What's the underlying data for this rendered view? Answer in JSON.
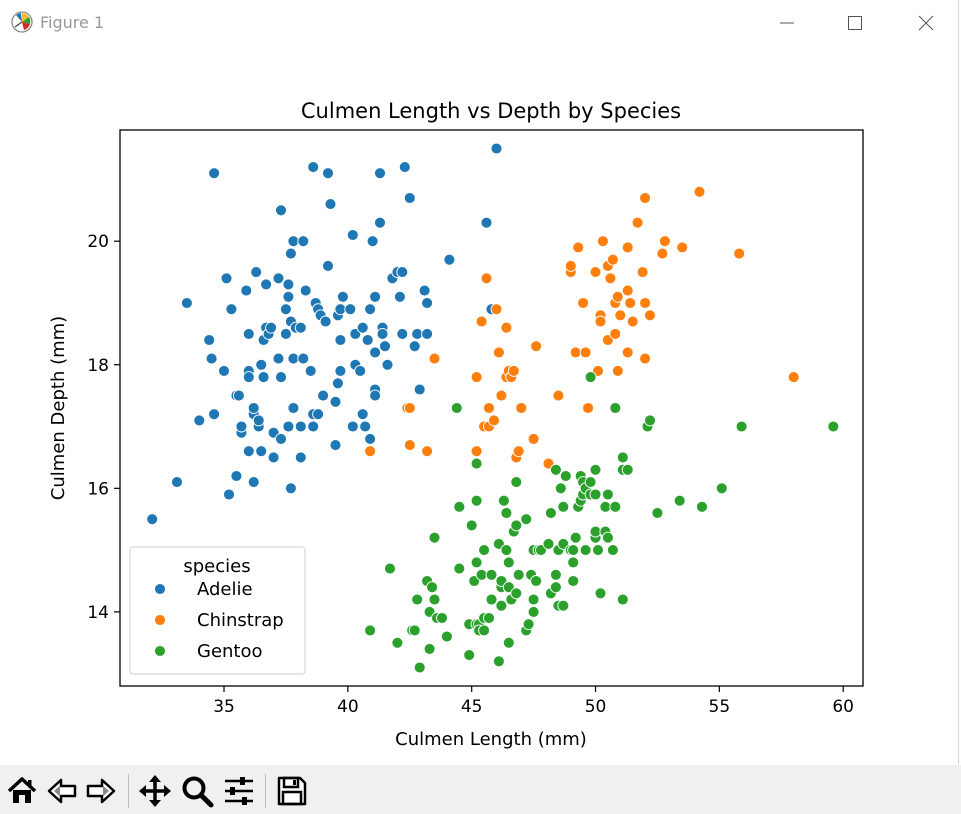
{
  "window": {
    "title": "Figure 1",
    "icons": [
      "matplotlib-icon",
      "minimize-icon",
      "maximize-icon",
      "close-icon"
    ]
  },
  "toolbar": {
    "buttons": [
      {
        "name": "home-button",
        "icon": "home-icon"
      },
      {
        "name": "back-button",
        "icon": "arrow-left-icon"
      },
      {
        "name": "forward-button",
        "icon": "arrow-right-icon"
      },
      {
        "name": "pan-button",
        "icon": "move-icon"
      },
      {
        "name": "zoom-button",
        "icon": "magnifier-icon"
      },
      {
        "name": "configure-subplots-button",
        "icon": "sliders-icon"
      },
      {
        "name": "save-button",
        "icon": "floppy-disk-icon"
      }
    ]
  },
  "chart_data": {
    "type": "scatter",
    "title": "Culmen Length vs Depth by Species",
    "xlabel": "Culmen Length (mm)",
    "ylabel": "Culmen Depth (mm)",
    "xlim": [
      30.8,
      60.8
    ],
    "ylim": [
      12.8,
      21.8
    ],
    "xticks": [
      35,
      40,
      45,
      50,
      55,
      60
    ],
    "yticks": [
      14,
      16,
      18,
      20
    ],
    "grid": false,
    "legend": {
      "title": "species",
      "position": "bottom-left"
    },
    "series": [
      {
        "name": "Adelie",
        "color": "#1f77b4",
        "points": [
          [
            32.1,
            15.5
          ],
          [
            33.1,
            16.1
          ],
          [
            33.5,
            19.0
          ],
          [
            34.0,
            17.1
          ],
          [
            34.4,
            18.4
          ],
          [
            34.5,
            18.1
          ],
          [
            34.6,
            21.1
          ],
          [
            34.6,
            17.2
          ],
          [
            35.0,
            17.9
          ],
          [
            35.1,
            19.4
          ],
          [
            35.2,
            15.9
          ],
          [
            35.3,
            18.9
          ],
          [
            35.5,
            16.2
          ],
          [
            35.5,
            17.5
          ],
          [
            35.6,
            17.5
          ],
          [
            35.7,
            16.9
          ],
          [
            35.7,
            17.0
          ],
          [
            35.9,
            19.2
          ],
          [
            36.0,
            18.5
          ],
          [
            36.0,
            17.9
          ],
          [
            36.0,
            17.8
          ],
          [
            36.0,
            16.6
          ],
          [
            36.2,
            16.1
          ],
          [
            36.2,
            17.2
          ],
          [
            36.2,
            17.3
          ],
          [
            36.3,
            19.5
          ],
          [
            36.4,
            17.0
          ],
          [
            36.4,
            17.1
          ],
          [
            36.5,
            18.0
          ],
          [
            36.5,
            16.6
          ],
          [
            36.6,
            17.8
          ],
          [
            36.6,
            18.4
          ],
          [
            36.7,
            19.3
          ],
          [
            36.7,
            18.6
          ],
          [
            36.8,
            18.5
          ],
          [
            36.9,
            18.6
          ],
          [
            37.0,
            16.9
          ],
          [
            37.0,
            16.5
          ],
          [
            37.2,
            18.1
          ],
          [
            37.2,
            19.4
          ],
          [
            37.3,
            20.5
          ],
          [
            37.3,
            16.8
          ],
          [
            37.3,
            17.8
          ],
          [
            37.5,
            18.9
          ],
          [
            37.5,
            18.5
          ],
          [
            37.6,
            19.3
          ],
          [
            37.6,
            17.0
          ],
          [
            37.6,
            19.1
          ],
          [
            37.7,
            18.7
          ],
          [
            37.7,
            16.0
          ],
          [
            37.7,
            19.8
          ],
          [
            37.8,
            20.0
          ],
          [
            37.8,
            18.1
          ],
          [
            37.8,
            17.3
          ],
          [
            37.9,
            18.6
          ],
          [
            38.1,
            18.6
          ],
          [
            38.1,
            16.5
          ],
          [
            38.1,
            17.0
          ],
          [
            38.2,
            18.1
          ],
          [
            38.2,
            20.0
          ],
          [
            38.3,
            19.2
          ],
          [
            38.5,
            17.9
          ],
          [
            38.6,
            21.2
          ],
          [
            38.6,
            17.2
          ],
          [
            38.6,
            17.0
          ],
          [
            38.7,
            19.0
          ],
          [
            38.8,
            17.2
          ],
          [
            38.8,
            18.9
          ],
          [
            38.9,
            18.8
          ],
          [
            39.0,
            17.5
          ],
          [
            39.1,
            18.7
          ],
          [
            39.2,
            19.6
          ],
          [
            39.2,
            21.1
          ],
          [
            39.3,
            20.6
          ],
          [
            39.5,
            17.4
          ],
          [
            39.5,
            16.7
          ],
          [
            39.6,
            17.7
          ],
          [
            39.6,
            18.8
          ],
          [
            39.7,
            18.4
          ],
          [
            39.7,
            18.9
          ],
          [
            39.7,
            17.9
          ],
          [
            39.8,
            19.1
          ],
          [
            40.1,
            18.9
          ],
          [
            40.2,
            17.0
          ],
          [
            40.2,
            20.1
          ],
          [
            40.3,
            18.0
          ],
          [
            40.3,
            18.5
          ],
          [
            40.5,
            17.9
          ],
          [
            40.6,
            18.6
          ],
          [
            40.6,
            17.2
          ],
          [
            40.7,
            17.0
          ],
          [
            40.8,
            18.4
          ],
          [
            40.9,
            18.9
          ],
          [
            40.9,
            16.8
          ],
          [
            41.0,
            20.0
          ],
          [
            41.1,
            17.6
          ],
          [
            41.1,
            18.2
          ],
          [
            41.1,
            19.1
          ],
          [
            41.1,
            17.5
          ],
          [
            41.3,
            20.3
          ],
          [
            41.3,
            21.1
          ],
          [
            41.4,
            18.6
          ],
          [
            41.4,
            18.5
          ],
          [
            41.5,
            18.3
          ],
          [
            41.6,
            18.0
          ],
          [
            41.8,
            19.4
          ],
          [
            42.0,
            19.5
          ],
          [
            42.1,
            19.1
          ],
          [
            42.2,
            18.5
          ],
          [
            42.2,
            19.5
          ],
          [
            42.3,
            21.2
          ],
          [
            42.5,
            20.7
          ],
          [
            42.7,
            18.3
          ],
          [
            42.8,
            18.5
          ],
          [
            42.9,
            17.6
          ],
          [
            43.1,
            19.2
          ],
          [
            43.2,
            19.0
          ],
          [
            43.2,
            18.5
          ],
          [
            44.1,
            19.7
          ],
          [
            45.6,
            20.3
          ],
          [
            46.0,
            21.5
          ],
          [
            45.8,
            18.9
          ]
        ]
      },
      {
        "name": "Chinstrap",
        "color": "#ff7f0e",
        "points": [
          [
            40.9,
            16.6
          ],
          [
            42.4,
            17.3
          ],
          [
            42.5,
            17.3
          ],
          [
            42.5,
            16.7
          ],
          [
            43.2,
            16.6
          ],
          [
            43.5,
            18.1
          ],
          [
            45.2,
            17.8
          ],
          [
            45.2,
            16.6
          ],
          [
            45.4,
            18.7
          ],
          [
            45.5,
            17.0
          ],
          [
            45.6,
            19.4
          ],
          [
            45.7,
            17.3
          ],
          [
            45.7,
            17.0
          ],
          [
            45.9,
            17.1
          ],
          [
            46.0,
            18.9
          ],
          [
            46.1,
            18.2
          ],
          [
            46.2,
            17.5
          ],
          [
            46.4,
            17.8
          ],
          [
            46.4,
            18.6
          ],
          [
            46.5,
            17.9
          ],
          [
            46.6,
            17.8
          ],
          [
            46.7,
            17.9
          ],
          [
            46.8,
            16.5
          ],
          [
            46.9,
            16.6
          ],
          [
            47.0,
            17.3
          ],
          [
            47.5,
            16.8
          ],
          [
            47.6,
            18.3
          ],
          [
            48.1,
            16.4
          ],
          [
            48.5,
            17.5
          ],
          [
            49.0,
            19.5
          ],
          [
            49.0,
            19.6
          ],
          [
            49.2,
            18.2
          ],
          [
            49.3,
            19.9
          ],
          [
            49.5,
            19.0
          ],
          [
            49.6,
            18.2
          ],
          [
            49.7,
            17.3
          ],
          [
            50.0,
            19.5
          ],
          [
            50.1,
            17.9
          ],
          [
            50.2,
            18.8
          ],
          [
            50.2,
            18.7
          ],
          [
            50.3,
            20.0
          ],
          [
            50.5,
            19.6
          ],
          [
            50.5,
            18.4
          ],
          [
            50.6,
            19.4
          ],
          [
            50.7,
            19.7
          ],
          [
            50.8,
            18.5
          ],
          [
            50.8,
            19.0
          ],
          [
            50.9,
            17.9
          ],
          [
            50.9,
            19.1
          ],
          [
            51.0,
            18.8
          ],
          [
            51.3,
            18.2
          ],
          [
            51.3,
            19.2
          ],
          [
            51.3,
            19.9
          ],
          [
            51.4,
            19.0
          ],
          [
            51.5,
            18.7
          ],
          [
            51.7,
            20.3
          ],
          [
            51.9,
            19.5
          ],
          [
            52.0,
            18.1
          ],
          [
            52.0,
            20.7
          ],
          [
            52.0,
            19.0
          ],
          [
            52.2,
            18.8
          ],
          [
            52.7,
            19.8
          ],
          [
            52.8,
            20.0
          ],
          [
            53.5,
            19.9
          ],
          [
            54.2,
            20.8
          ],
          [
            55.8,
            19.8
          ],
          [
            58.0,
            17.8
          ]
        ]
      },
      {
        "name": "Gentoo",
        "color": "#2ca02c",
        "points": [
          [
            40.9,
            13.7
          ],
          [
            41.7,
            14.7
          ],
          [
            42.0,
            13.5
          ],
          [
            42.6,
            13.7
          ],
          [
            42.7,
            13.7
          ],
          [
            42.8,
            14.2
          ],
          [
            42.9,
            13.1
          ],
          [
            43.2,
            14.5
          ],
          [
            43.3,
            13.4
          ],
          [
            43.3,
            14.0
          ],
          [
            43.4,
            14.4
          ],
          [
            43.5,
            14.2
          ],
          [
            43.5,
            15.2
          ],
          [
            43.6,
            13.9
          ],
          [
            43.8,
            13.9
          ],
          [
            44.0,
            13.6
          ],
          [
            44.4,
            17.3
          ],
          [
            44.5,
            14.7
          ],
          [
            44.5,
            15.7
          ],
          [
            44.9,
            13.3
          ],
          [
            44.9,
            13.8
          ],
          [
            45.0,
            15.4
          ],
          [
            45.1,
            14.5
          ],
          [
            45.2,
            13.8
          ],
          [
            45.2,
            14.8
          ],
          [
            45.2,
            15.8
          ],
          [
            45.2,
            16.4
          ],
          [
            45.3,
            13.8
          ],
          [
            45.3,
            13.7
          ],
          [
            45.4,
            14.6
          ],
          [
            45.5,
            13.7
          ],
          [
            45.5,
            13.9
          ],
          [
            45.5,
            15.0
          ],
          [
            45.7,
            13.9
          ],
          [
            45.8,
            14.2
          ],
          [
            45.8,
            14.6
          ],
          [
            46.1,
            13.2
          ],
          [
            46.1,
            15.1
          ],
          [
            46.2,
            14.1
          ],
          [
            46.2,
            14.4
          ],
          [
            46.2,
            14.5
          ],
          [
            46.3,
            15.8
          ],
          [
            46.4,
            15.0
          ],
          [
            46.4,
            15.6
          ],
          [
            46.5,
            13.5
          ],
          [
            46.5,
            14.4
          ],
          [
            46.5,
            14.8
          ],
          [
            46.6,
            14.2
          ],
          [
            46.7,
            15.3
          ],
          [
            46.8,
            14.3
          ],
          [
            46.8,
            15.4
          ],
          [
            46.8,
            16.1
          ],
          [
            46.9,
            14.6
          ],
          [
            47.2,
            13.7
          ],
          [
            47.2,
            15.5
          ],
          [
            47.3,
            13.8
          ],
          [
            47.4,
            14.6
          ],
          [
            47.5,
            14.0
          ],
          [
            47.5,
            14.2
          ],
          [
            47.5,
            15.0
          ],
          [
            47.6,
            14.5
          ],
          [
            47.7,
            15.0
          ],
          [
            47.8,
            15.0
          ],
          [
            48.1,
            15.1
          ],
          [
            48.2,
            14.3
          ],
          [
            48.2,
            15.6
          ],
          [
            48.4,
            14.4
          ],
          [
            48.4,
            14.6
          ],
          [
            48.4,
            16.3
          ],
          [
            48.5,
            14.1
          ],
          [
            48.5,
            15.0
          ],
          [
            48.6,
            16.0
          ],
          [
            48.7,
            14.1
          ],
          [
            48.7,
            15.1
          ],
          [
            48.7,
            15.7
          ],
          [
            48.8,
            16.2
          ],
          [
            49.0,
            15.0
          ],
          [
            49.1,
            14.5
          ],
          [
            49.1,
            14.8
          ],
          [
            49.1,
            15.0
          ],
          [
            49.2,
            15.2
          ],
          [
            49.3,
            15.7
          ],
          [
            49.4,
            15.8
          ],
          [
            49.4,
            16.2
          ],
          [
            49.5,
            15.9
          ],
          [
            49.5,
            16.1
          ],
          [
            49.6,
            15.0
          ],
          [
            49.6,
            16.0
          ],
          [
            49.8,
            15.9
          ],
          [
            49.8,
            16.1
          ],
          [
            50.0,
            15.2
          ],
          [
            50.0,
            15.3
          ],
          [
            50.0,
            15.9
          ],
          [
            50.0,
            16.3
          ],
          [
            50.1,
            15.0
          ],
          [
            50.2,
            14.3
          ],
          [
            50.4,
            15.3
          ],
          [
            50.4,
            15.7
          ],
          [
            50.5,
            15.2
          ],
          [
            50.5,
            15.9
          ],
          [
            50.7,
            15.0
          ],
          [
            50.8,
            15.7
          ],
          [
            50.8,
            17.3
          ],
          [
            51.1,
            14.2
          ],
          [
            51.1,
            16.3
          ],
          [
            51.1,
            16.5
          ],
          [
            51.3,
            16.3
          ],
          [
            52.1,
            17.0
          ],
          [
            52.2,
            17.1
          ],
          [
            52.5,
            15.6
          ],
          [
            53.4,
            15.8
          ],
          [
            54.3,
            15.7
          ],
          [
            55.1,
            16.0
          ],
          [
            55.9,
            17.0
          ],
          [
            59.6,
            17.0
          ],
          [
            49.8,
            17.8
          ]
        ]
      }
    ]
  }
}
